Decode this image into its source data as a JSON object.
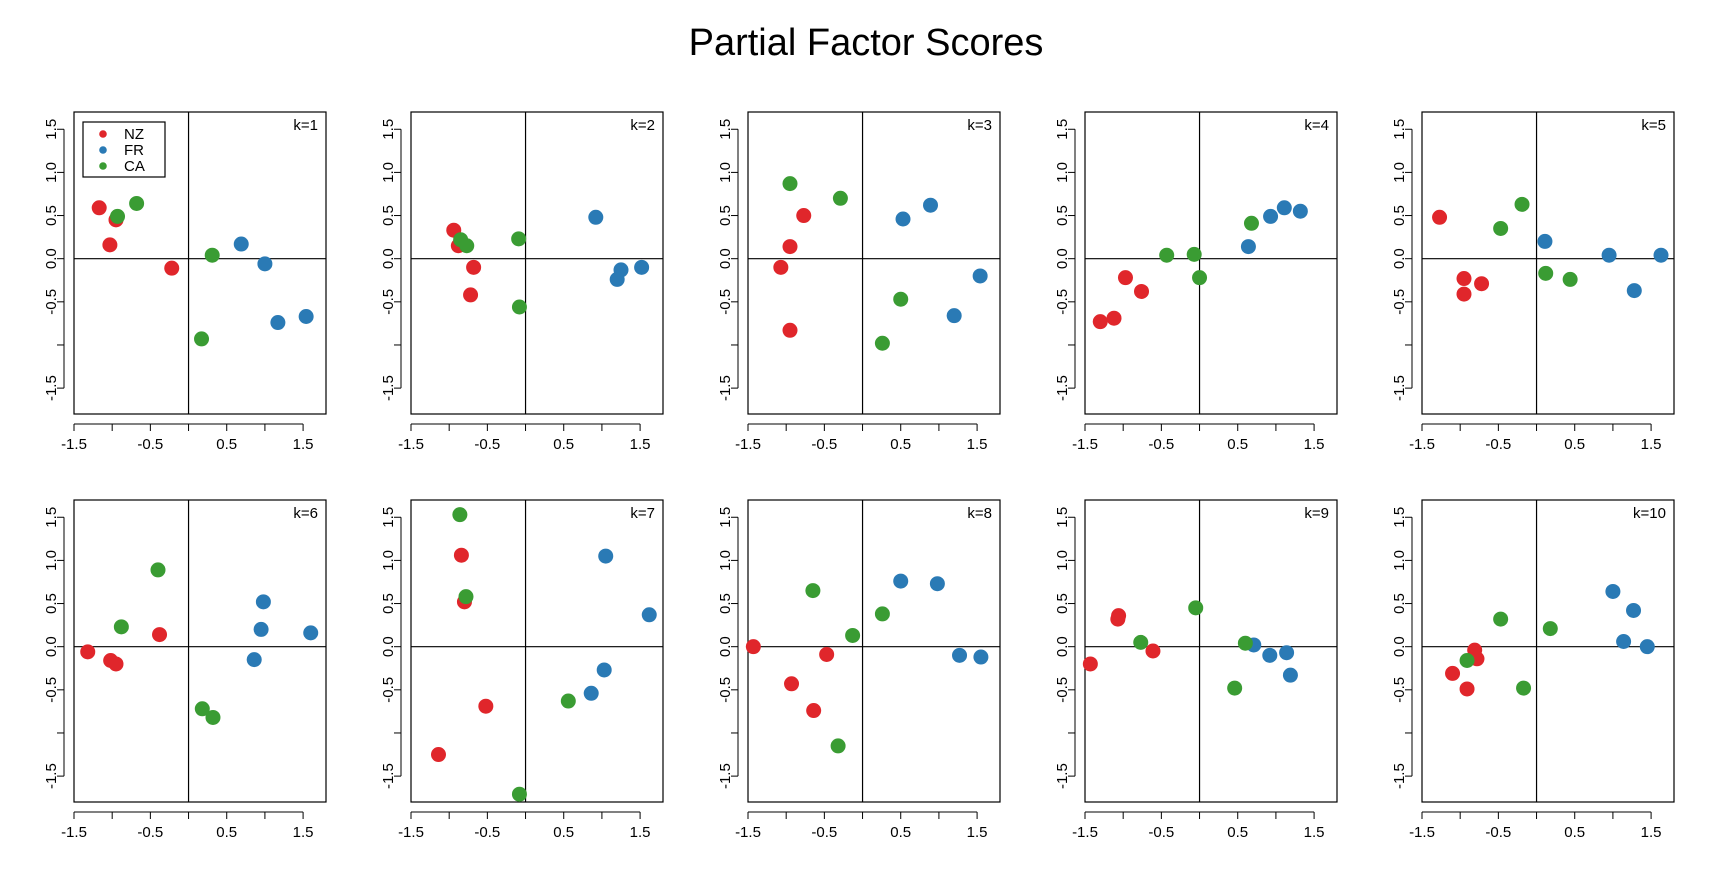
{
  "title": "Partial Factor Scores",
  "chart_data": {
    "type": "scatter",
    "title": "Partial Factor Scores",
    "xlim": [
      -1.5,
      1.8
    ],
    "ylim": [
      -1.8,
      1.7
    ],
    "x_ticks": [
      -1.5,
      -0.5,
      0.5,
      1.5
    ],
    "x_tick_labels": [
      "-1.5",
      "-0.5",
      "0.5",
      "1.5"
    ],
    "y_ticks": [
      -1.5,
      -0.5,
      0.0,
      0.5,
      1.0,
      1.5
    ],
    "y_tick_labels": [
      "-1.5",
      "-0.5",
      "0.0",
      "0.5",
      "1.0",
      "1.5"
    ],
    "y_minor_ticks": [
      -1.0
    ],
    "reference_lines": {
      "x": 0,
      "y": 0
    },
    "legend": {
      "placement": "top-left",
      "panel": "k=1",
      "entries": [
        {
          "name": "NZ",
          "color": "#e0262b"
        },
        {
          "name": "FR",
          "color": "#2a7ab5"
        },
        {
          "name": "CA",
          "color": "#3a9c33"
        }
      ]
    },
    "panels": [
      {
        "label": "k=1",
        "series": [
          {
            "name": "NZ",
            "points": [
              [
                -1.17,
                0.59
              ],
              [
                -0.95,
                0.45
              ],
              [
                -1.03,
                0.16
              ],
              [
                -0.22,
                -0.11
              ]
            ]
          },
          {
            "name": "FR",
            "points": [
              [
                0.69,
                0.17
              ],
              [
                1.0,
                -0.06
              ],
              [
                1.17,
                -0.74
              ],
              [
                1.54,
                -0.67
              ]
            ]
          },
          {
            "name": "CA",
            "points": [
              [
                -0.68,
                0.64
              ],
              [
                -0.93,
                0.49
              ],
              [
                0.31,
                0.04
              ],
              [
                0.17,
                -0.93
              ]
            ]
          }
        ]
      },
      {
        "label": "k=2",
        "series": [
          {
            "name": "NZ",
            "points": [
              [
                -0.94,
                0.33
              ],
              [
                -0.88,
                0.15
              ],
              [
                -0.68,
                -0.1
              ],
              [
                -0.72,
                -0.42
              ]
            ]
          },
          {
            "name": "FR",
            "points": [
              [
                0.92,
                0.48
              ],
              [
                1.25,
                -0.13
              ],
              [
                1.2,
                -0.24
              ],
              [
                1.52,
                -0.1
              ]
            ]
          },
          {
            "name": "CA",
            "points": [
              [
                -0.85,
                0.22
              ],
              [
                -0.77,
                0.15
              ],
              [
                -0.09,
                0.23
              ],
              [
                -0.08,
                -0.56
              ]
            ]
          }
        ]
      },
      {
        "label": "k=3",
        "series": [
          {
            "name": "NZ",
            "points": [
              [
                -0.77,
                0.5
              ],
              [
                -0.95,
                0.14
              ],
              [
                -1.07,
                -0.1
              ],
              [
                -0.95,
                -0.83
              ]
            ]
          },
          {
            "name": "FR",
            "points": [
              [
                0.53,
                0.46
              ],
              [
                0.89,
                0.62
              ],
              [
                1.2,
                -0.66
              ],
              [
                1.54,
                -0.2
              ]
            ]
          },
          {
            "name": "CA",
            "points": [
              [
                -0.95,
                0.87
              ],
              [
                -0.29,
                0.7
              ],
              [
                0.5,
                -0.47
              ],
              [
                0.26,
                -0.98
              ]
            ]
          }
        ]
      },
      {
        "label": "k=4",
        "series": [
          {
            "name": "NZ",
            "points": [
              [
                -1.3,
                -0.73
              ],
              [
                -1.12,
                -0.69
              ],
              [
                -0.97,
                -0.22
              ],
              [
                -0.76,
                -0.38
              ]
            ]
          },
          {
            "name": "FR",
            "points": [
              [
                0.64,
                0.14
              ],
              [
                0.93,
                0.49
              ],
              [
                1.11,
                0.59
              ],
              [
                1.32,
                0.55
              ]
            ]
          },
          {
            "name": "CA",
            "points": [
              [
                -0.43,
                0.04
              ],
              [
                -0.07,
                0.05
              ],
              [
                0.68,
                0.41
              ],
              [
                0.0,
                -0.22
              ]
            ]
          }
        ]
      },
      {
        "label": "k=5",
        "series": [
          {
            "name": "NZ",
            "points": [
              [
                -1.27,
                0.48
              ],
              [
                -0.95,
                -0.23
              ],
              [
                -0.72,
                -0.29
              ],
              [
                -0.95,
                -0.41
              ]
            ]
          },
          {
            "name": "FR",
            "points": [
              [
                0.11,
                0.2
              ],
              [
                0.95,
                0.04
              ],
              [
                1.28,
                -0.37
              ],
              [
                1.63,
                0.04
              ]
            ]
          },
          {
            "name": "CA",
            "points": [
              [
                -0.47,
                0.35
              ],
              [
                -0.19,
                0.63
              ],
              [
                0.12,
                -0.17
              ],
              [
                0.44,
                -0.24
              ]
            ]
          }
        ]
      },
      {
        "label": "k=6",
        "series": [
          {
            "name": "NZ",
            "points": [
              [
                -1.32,
                -0.06
              ],
              [
                -1.02,
                -0.16
              ],
              [
                -0.95,
                -0.2
              ],
              [
                -0.38,
                0.14
              ]
            ]
          },
          {
            "name": "FR",
            "points": [
              [
                0.98,
                0.52
              ],
              [
                0.95,
                0.2
              ],
              [
                0.86,
                -0.15
              ],
              [
                1.6,
                0.16
              ]
            ]
          },
          {
            "name": "CA",
            "points": [
              [
                -0.88,
                0.23
              ],
              [
                -0.4,
                0.89
              ],
              [
                0.18,
                -0.72
              ],
              [
                0.32,
                -0.82
              ]
            ]
          }
        ]
      },
      {
        "label": "k=7",
        "series": [
          {
            "name": "NZ",
            "points": [
              [
                -0.84,
                1.06
              ],
              [
                -0.8,
                0.52
              ],
              [
                -0.52,
                -0.69
              ],
              [
                -1.14,
                -1.25
              ]
            ]
          },
          {
            "name": "FR",
            "points": [
              [
                1.05,
                1.05
              ],
              [
                1.62,
                0.37
              ],
              [
                1.03,
                -0.27
              ],
              [
                0.86,
                -0.54
              ]
            ]
          },
          {
            "name": "CA",
            "points": [
              [
                -0.86,
                1.53
              ],
              [
                -0.78,
                0.58
              ],
              [
                0.56,
                -0.63
              ],
              [
                -0.08,
                -1.71
              ]
            ]
          }
        ]
      },
      {
        "label": "k=8",
        "series": [
          {
            "name": "NZ",
            "points": [
              [
                -1.43,
                0.0
              ],
              [
                -0.93,
                -0.43
              ],
              [
                -0.47,
                -0.09
              ],
              [
                -0.64,
                -0.74
              ]
            ]
          },
          {
            "name": "FR",
            "points": [
              [
                0.5,
                0.76
              ],
              [
                0.98,
                0.73
              ],
              [
                1.27,
                -0.1
              ],
              [
                1.55,
                -0.12
              ]
            ]
          },
          {
            "name": "CA",
            "points": [
              [
                -0.65,
                0.65
              ],
              [
                -0.13,
                0.13
              ],
              [
                0.26,
                0.38
              ],
              [
                -0.32,
                -1.15
              ]
            ]
          }
        ]
      },
      {
        "label": "k=9",
        "series": [
          {
            "name": "NZ",
            "points": [
              [
                -1.43,
                -0.2
              ],
              [
                -1.06,
                0.36
              ],
              [
                -1.07,
                0.32
              ],
              [
                -0.61,
                -0.05
              ]
            ]
          },
          {
            "name": "FR",
            "points": [
              [
                0.71,
                0.02
              ],
              [
                0.92,
                -0.1
              ],
              [
                1.14,
                -0.07
              ],
              [
                1.19,
                -0.33
              ]
            ]
          },
          {
            "name": "CA",
            "points": [
              [
                -0.77,
                0.05
              ],
              [
                -0.05,
                0.45
              ],
              [
                0.6,
                0.04
              ],
              [
                0.46,
                -0.48
              ]
            ]
          }
        ]
      },
      {
        "label": "k=10",
        "series": [
          {
            "name": "NZ",
            "points": [
              [
                -0.81,
                -0.04
              ],
              [
                -1.1,
                -0.31
              ],
              [
                -0.91,
                -0.49
              ],
              [
                -0.78,
                -0.14
              ]
            ]
          },
          {
            "name": "FR",
            "points": [
              [
                1.0,
                0.64
              ],
              [
                1.27,
                0.42
              ],
              [
                1.14,
                0.06
              ],
              [
                1.45,
                0.0
              ]
            ]
          },
          {
            "name": "CA",
            "points": [
              [
                -0.47,
                0.32
              ],
              [
                0.18,
                0.21
              ],
              [
                -0.91,
                -0.16
              ],
              [
                -0.17,
                -0.48
              ]
            ]
          }
        ]
      }
    ]
  }
}
